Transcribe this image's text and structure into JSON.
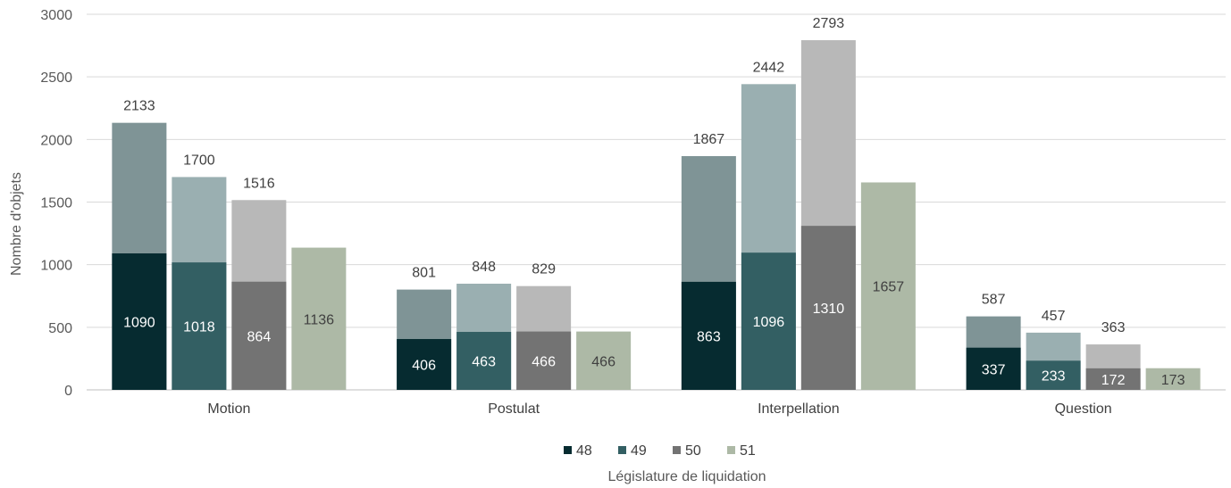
{
  "chart_data": {
    "type": "bar",
    "title": "",
    "xlabel": "Législature de liquidation",
    "ylabel": "Nombre d'objets",
    "ylim": [
      0,
      3000
    ],
    "yticks": [
      0,
      500,
      1000,
      1500,
      2000,
      2500,
      3000
    ],
    "grid": true,
    "legend_position": "bottom",
    "categories": [
      "Motion",
      "Postulat",
      "Interpellation",
      "Question"
    ],
    "series": [
      {
        "name": "48",
        "color_dark": "#062b30",
        "color_light": "#7f9496",
        "label_color": "#ffffff",
        "values": [
          1090,
          406,
          863,
          337
        ],
        "totals": [
          2133,
          801,
          1867,
          587
        ]
      },
      {
        "name": "49",
        "color_dark": "#335f63",
        "color_light": "#9aafb1",
        "label_color": "#ffffff",
        "values": [
          1018,
          463,
          1096,
          233
        ],
        "totals": [
          1700,
          848,
          2442,
          457
        ]
      },
      {
        "name": "50",
        "color_dark": "#737373",
        "color_light": "#b8b8b8",
        "label_color": "#ffffff",
        "values": [
          864,
          466,
          1310,
          172
        ],
        "totals": [
          1516,
          829,
          2793,
          363
        ]
      },
      {
        "name": "51",
        "color_dark": "#adb9a6",
        "color_light": "#adb9a6",
        "label_color": "#404040",
        "values": [
          1136,
          466,
          1657,
          173
        ],
        "totals": [
          null,
          null,
          null,
          null
        ]
      }
    ]
  }
}
